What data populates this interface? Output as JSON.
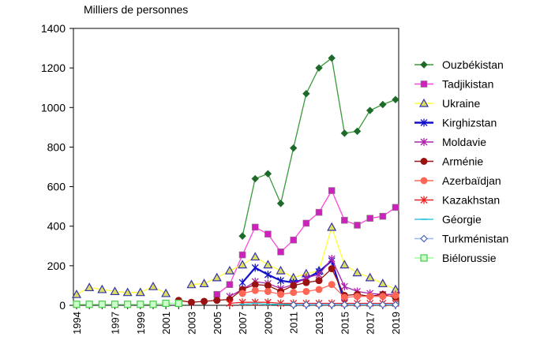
{
  "chart_data": {
    "type": "line",
    "ylabel": "Milliers de personnes",
    "ylim": [
      0,
      1400
    ],
    "yticks": [
      0,
      200,
      400,
      600,
      800,
      1000,
      1200,
      1400
    ],
    "x": [
      1994,
      1995,
      1996,
      1997,
      1998,
      1999,
      2000,
      2001,
      2002,
      2003,
      2004,
      2005,
      2006,
      2007,
      2008,
      2009,
      2010,
      2011,
      2012,
      2013,
      2014,
      2015,
      2016,
      2017,
      2018,
      2019
    ],
    "xtick_labels": [
      "1994",
      "1997",
      "1999",
      "2001",
      "2003",
      "2005",
      "2007",
      "2009",
      "2011",
      "2013",
      "2015",
      "2017",
      "2019"
    ],
    "legend_position": "right",
    "series": [
      {
        "name": "Ouzbékistan",
        "color": "#3a9a3a",
        "marker": "diamond",
        "markerColor": "#1f6a2a",
        "values": [
          null,
          null,
          null,
          null,
          null,
          null,
          null,
          null,
          null,
          null,
          null,
          null,
          null,
          350,
          640,
          665,
          515,
          795,
          1070,
          1200,
          1250,
          870,
          880,
          985,
          1015,
          1040
        ]
      },
      {
        "name": "Tadjikistan",
        "color": "#ff44dd",
        "marker": "square",
        "markerColor": "#cc22bb",
        "values": [
          null,
          null,
          null,
          null,
          null,
          null,
          null,
          null,
          null,
          null,
          null,
          55,
          105,
          255,
          395,
          360,
          270,
          330,
          415,
          470,
          580,
          430,
          405,
          440,
          450,
          495
        ]
      },
      {
        "name": "Ukraine",
        "color": "#ffff33",
        "marker": "triangle",
        "markerColor": "#3333aa",
        "values": [
          55,
          90,
          80,
          70,
          65,
          65,
          95,
          60,
          null,
          105,
          110,
          140,
          175,
          205,
          245,
          205,
          175,
          140,
          160,
          175,
          395,
          205,
          165,
          140,
          110,
          80
        ]
      },
      {
        "name": "Kirghizstan",
        "color": "#1111cc",
        "marker": "star",
        "markerColor": "#1111cc",
        "values": [
          null,
          null,
          null,
          null,
          null,
          null,
          null,
          null,
          null,
          null,
          null,
          null,
          null,
          115,
          190,
          155,
          125,
          115,
          135,
          170,
          225,
          15,
          null,
          null,
          null,
          null
        ]
      },
      {
        "name": "Moldavie",
        "color": "#aa22aa",
        "marker": "star",
        "markerColor": "#aa22aa",
        "values": [
          null,
          null,
          null,
          null,
          null,
          null,
          null,
          null,
          null,
          null,
          null,
          null,
          45,
          80,
          120,
          110,
          85,
          105,
          140,
          155,
          235,
          95,
          70,
          60,
          55,
          55
        ]
      },
      {
        "name": "Arménie",
        "color": "#991111",
        "marker": "circle",
        "markerColor": "#991111",
        "values": [
          null,
          null,
          null,
          null,
          null,
          null,
          null,
          null,
          25,
          15,
          20,
          25,
          30,
          80,
          105,
          100,
          70,
          100,
          115,
          125,
          185,
          50,
          55,
          45,
          55,
          40
        ]
      },
      {
        "name": "Azerbaïdjan",
        "color": "#ff6655",
        "marker": "circle",
        "markerColor": "#ff6655",
        "values": [
          null,
          null,
          null,
          null,
          null,
          null,
          null,
          null,
          null,
          null,
          null,
          null,
          null,
          60,
          75,
          70,
          55,
          65,
          70,
          80,
          105,
          40,
          45,
          45,
          45,
          50
        ]
      },
      {
        "name": "Kazakhstan",
        "color": "#ee2222",
        "marker": "star",
        "markerColor": "#ee2222",
        "values": [
          null,
          null,
          null,
          null,
          null,
          null,
          null,
          null,
          null,
          null,
          null,
          null,
          10,
          15,
          15,
          15,
          10,
          10,
          10,
          10,
          10,
          10,
          10,
          10,
          10,
          10
        ]
      },
      {
        "name": "Géorgie",
        "color": "#33ccdd",
        "marker": "dash",
        "markerColor": "#33ccdd",
        "values": [
          null,
          null,
          null,
          null,
          null,
          null,
          null,
          null,
          null,
          null,
          null,
          null,
          null,
          5,
          10,
          5,
          5,
          5,
          5,
          5,
          5,
          5,
          5,
          5,
          5,
          5
        ]
      },
      {
        "name": "Turkménistan",
        "color": "#99bbee",
        "marker": "diamond-open",
        "markerColor": "#4466bb",
        "values": [
          null,
          null,
          null,
          null,
          null,
          null,
          null,
          null,
          null,
          null,
          null,
          null,
          null,
          null,
          null,
          null,
          null,
          2,
          3,
          3,
          3,
          3,
          3,
          3,
          3,
          3
        ]
      },
      {
        "name": "Biélorussie",
        "color": "#99ff99",
        "marker": "square-open",
        "markerColor": "#44cc44",
        "values": [
          5,
          5,
          5,
          5,
          5,
          5,
          5,
          10,
          10,
          null,
          null,
          null,
          null,
          null,
          null,
          null,
          null,
          null,
          null,
          null,
          null,
          null,
          null,
          null,
          null,
          null
        ]
      }
    ]
  }
}
